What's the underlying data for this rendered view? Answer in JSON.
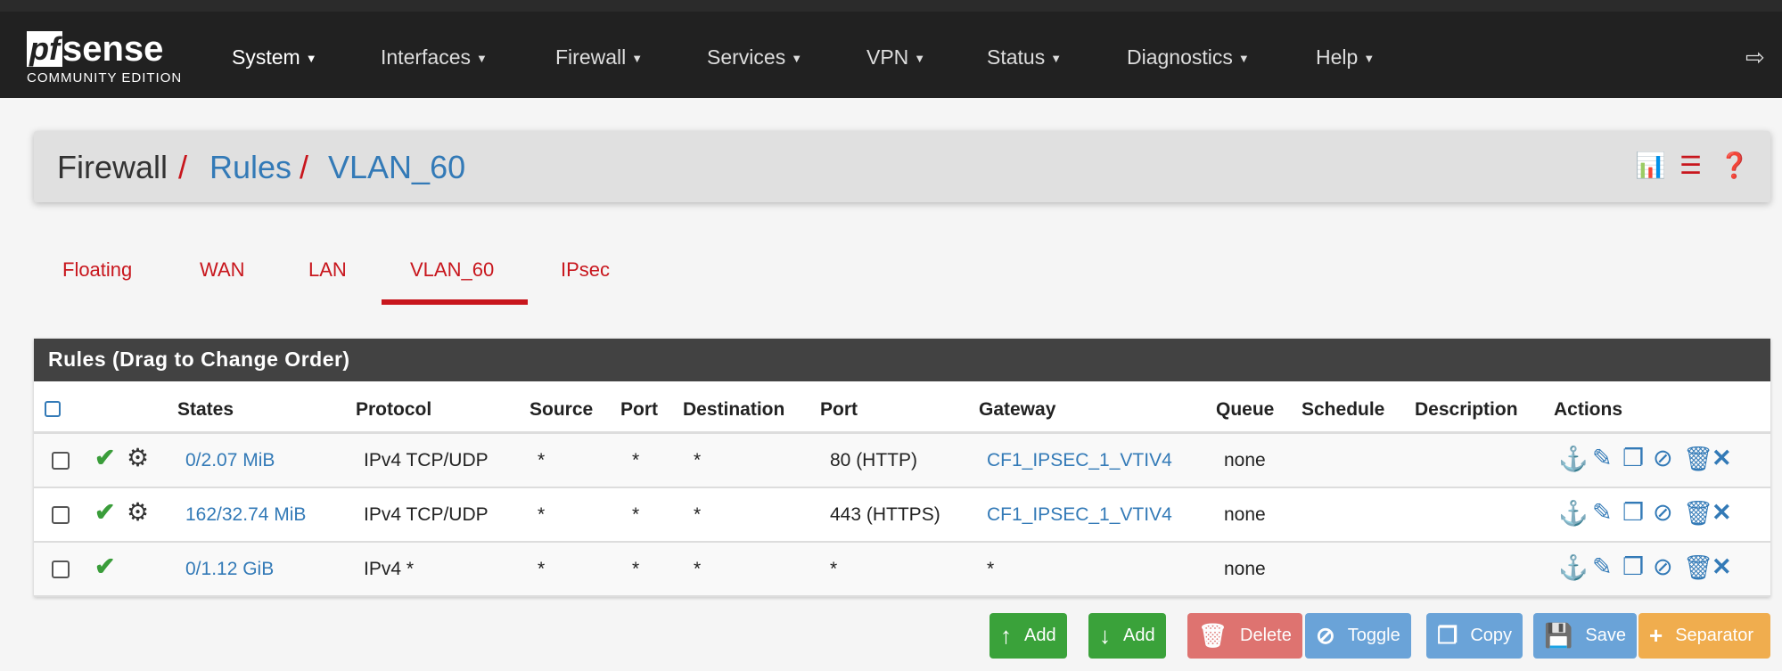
{
  "brand": {
    "logo_text": "pfsense",
    "edition": "COMMUNITY EDITION"
  },
  "nav": [
    "System",
    "Interfaces",
    "Firewall",
    "Services",
    "VPN",
    "Status",
    "Diagnostics",
    "Help"
  ],
  "breadcrumb": {
    "root": "Firewall",
    "sep": "/",
    "section": "Rules",
    "current": "VLAN_60"
  },
  "tabs": [
    "Floating",
    "WAN",
    "LAN",
    "VLAN_60",
    "IPsec"
  ],
  "active_tab": "VLAN_60",
  "panel_title": "Rules (Drag to Change Order)",
  "columns": [
    "States",
    "Protocol",
    "Source",
    "Port",
    "Destination",
    "Port",
    "Gateway",
    "Queue",
    "Schedule",
    "Description",
    "Actions"
  ],
  "rules": [
    {
      "states": "0/2.07 MiB",
      "protocol": "IPv4 TCP/UDP",
      "source": "*",
      "sport": "*",
      "dest": "*",
      "dport": "80 (HTTP)",
      "gateway": "CF1_IPSEC_1_VTIV4",
      "queue": "none",
      "schedule": "",
      "description": "",
      "advanced": true
    },
    {
      "states": "162/32.74 MiB",
      "protocol": "IPv4 TCP/UDP",
      "source": "*",
      "sport": "*",
      "dest": "*",
      "dport": "443 (HTTPS)",
      "gateway": "CF1_IPSEC_1_VTIV4",
      "queue": "none",
      "schedule": "",
      "description": "",
      "advanced": true
    },
    {
      "states": "0/1.12 GiB",
      "protocol": "IPv4 *",
      "source": "*",
      "sport": "*",
      "dest": "*",
      "dport": "*",
      "gateway": "*",
      "queue": "none",
      "schedule": "",
      "description": "",
      "advanced": false
    }
  ],
  "buttons": {
    "add_top": "Add",
    "add_bottom": "Add",
    "delete": "Delete",
    "toggle": "Toggle",
    "copy": "Copy",
    "save": "Save",
    "separator": "Separator"
  },
  "colors": {
    "navbar": "#212121",
    "accent_red": "#c8161d",
    "link_blue": "#337ab7",
    "success": "#3aa23a",
    "danger": "#d9534f",
    "warning": "#f0ad4e"
  }
}
